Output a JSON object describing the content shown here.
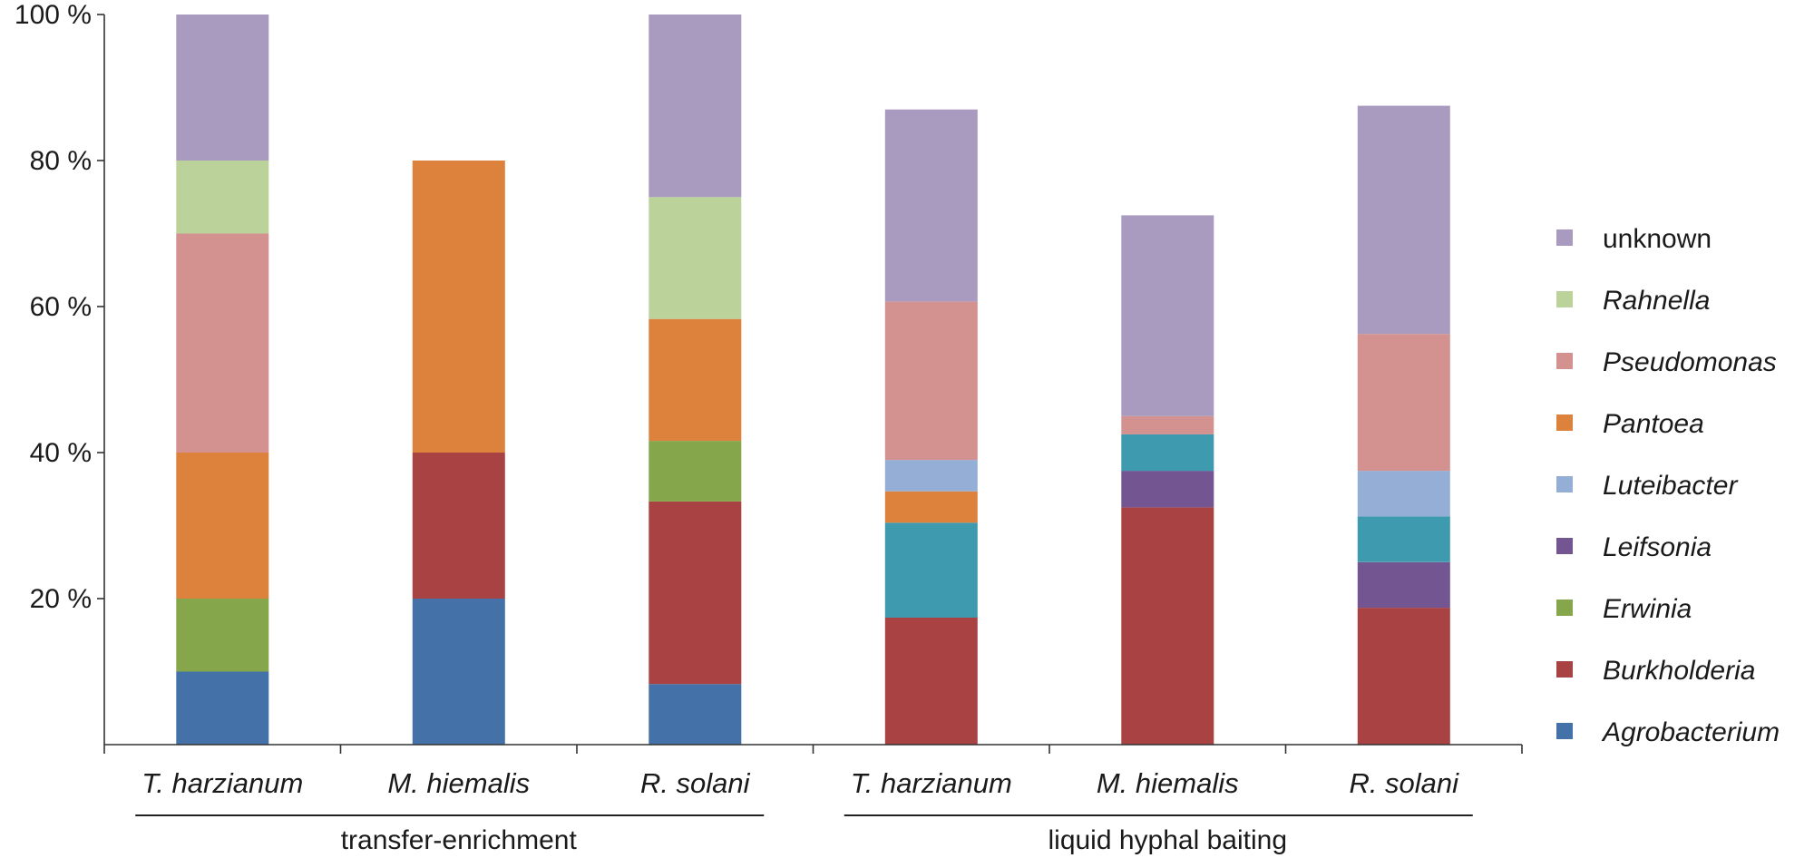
{
  "chart_data": {
    "type": "bar",
    "stacked": true,
    "categories": [
      "T. harzianum",
      "M. hiemalis",
      "R. solani",
      "T. harzianum",
      "M. hiemalis",
      "R. solani"
    ],
    "groups": [
      {
        "label": "transfer-enrichment",
        "categories": [
          0,
          1,
          2
        ]
      },
      {
        "label": "liquid hyphal baiting",
        "categories": [
          3,
          4,
          5
        ]
      }
    ],
    "series": [
      {
        "name": "Agrobacterium",
        "italic": true,
        "color": "#4472a8",
        "values": [
          10,
          20,
          8.3,
          0,
          0,
          0
        ]
      },
      {
        "name": "Burkholderia",
        "italic": true,
        "color": "#a94343",
        "values": [
          0,
          20,
          25,
          17.4,
          32.5,
          18.75
        ]
      },
      {
        "name": "Erwinia",
        "italic": true,
        "color": "#86a64b",
        "values": [
          10,
          0,
          8.3,
          0,
          0,
          0
        ]
      },
      {
        "name": "Leifsonia",
        "italic": true,
        "color": "#735592",
        "values": [
          0,
          0,
          0,
          0,
          5,
          6.25
        ]
      },
      {
        "name": "",
        "italic": false,
        "color": "#3d9aaf",
        "values": [
          0,
          0,
          0,
          13,
          5,
          6.25
        ]
      },
      {
        "name": "Pantoea",
        "italic": true,
        "color": "#dc823c",
        "values": [
          20,
          40,
          16.7,
          4.3,
          0,
          0
        ]
      },
      {
        "name": "Luteibacter",
        "italic": true,
        "color": "#95aed5",
        "values": [
          0,
          0,
          0,
          4.3,
          0,
          6.25
        ]
      },
      {
        "name": "Pseudomonas",
        "italic": true,
        "color": "#d39190",
        "values": [
          30,
          0,
          0,
          21.7,
          2.5,
          18.75
        ]
      },
      {
        "name": "Rahnella",
        "italic": true,
        "color": "#bbd29a",
        "values": [
          10,
          0,
          16.7,
          0,
          0,
          0
        ]
      },
      {
        "name": "unknown",
        "italic": false,
        "color": "#a99bbf",
        "values": [
          20,
          0,
          25,
          26.3,
          27.5,
          31.25
        ]
      }
    ],
    "legend_order": [
      "unknown",
      "Rahnella",
      "Pseudomonas",
      "Pantoea",
      "Luteibacter",
      "Leifsonia",
      "Erwinia",
      "Burkholderia",
      "Agrobacterium"
    ],
    "y_ticks": [
      {
        "value": 20,
        "label": "20 %"
      },
      {
        "value": 40,
        "label": "40 %"
      },
      {
        "value": 60,
        "label": "60 %"
      },
      {
        "value": 80,
        "label": "80 %"
      },
      {
        "value": 100,
        "label": "100 %"
      }
    ],
    "ylim": [
      0,
      100
    ],
    "title": "",
    "xlabel": "",
    "ylabel": "",
    "legend_position": "right"
  }
}
